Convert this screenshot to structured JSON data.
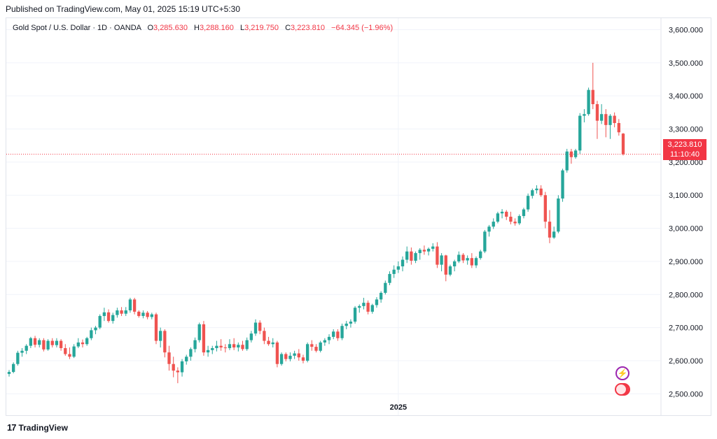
{
  "header": {
    "published": "Published on TradingView.com, May 01, 2025 15:19 UTC+5:30"
  },
  "legend": {
    "symbol": "Gold Spot / U.S. Dollar · 1D · OANDA",
    "o_label": "O",
    "o_value": "3,285.630",
    "h_label": "H",
    "h_value": "3,288.160",
    "l_label": "L",
    "l_value": "3,219.750",
    "c_label": "C",
    "c_value": "3,223.810",
    "change": "−64.345 (−1.96%)"
  },
  "price_tag": {
    "price": "3,223.810",
    "countdown": "11:10:40"
  },
  "events": {
    "event1_icon": "lightning-icon",
    "event2_icon": "us-flag-icon"
  },
  "footer": {
    "logo_text": "TradingView",
    "logo_icon": "tradingview-logo-icon"
  },
  "colors": {
    "up": "#26a69a",
    "down": "#ef5350",
    "last_price": "#f23645",
    "grid": "#f0f3fa"
  },
  "chart_data": {
    "type": "candlestick",
    "title": "Gold Spot / U.S. Dollar · 1D · OANDA",
    "ylim": [
      2450,
      3620
    ],
    "y_ticks": [
      2500,
      2600,
      2700,
      2800,
      2900,
      3000,
      3100,
      3200,
      3300,
      3400,
      3500,
      3600
    ],
    "y_tick_labels": [
      "2,500.000",
      "2,600.000",
      "2,700.000",
      "2,800.000",
      "2,900.000",
      "3,000.000",
      "3,100.000",
      "3,200.000",
      "3,300.000",
      "3,400.000",
      "3,500.000",
      "3,600.000"
    ],
    "x_labels": [
      {
        "index": 90,
        "label": "2025"
      }
    ],
    "last_price": 3223.81,
    "candles": [
      [
        2560,
        2572,
        2552,
        2566
      ],
      [
        2566,
        2595,
        2562,
        2590
      ],
      [
        2590,
        2630,
        2585,
        2624
      ],
      [
        2624,
        2638,
        2612,
        2630
      ],
      [
        2630,
        2650,
        2620,
        2645
      ],
      [
        2645,
        2672,
        2638,
        2668
      ],
      [
        2668,
        2675,
        2640,
        2648
      ],
      [
        2648,
        2668,
        2640,
        2662
      ],
      [
        2662,
        2668,
        2628,
        2634
      ],
      [
        2634,
        2665,
        2630,
        2660
      ],
      [
        2660,
        2668,
        2640,
        2647
      ],
      [
        2647,
        2668,
        2640,
        2660
      ],
      [
        2660,
        2665,
        2630,
        2638
      ],
      [
        2638,
        2650,
        2615,
        2620
      ],
      [
        2620,
        2640,
        2605,
        2612
      ],
      [
        2612,
        2650,
        2608,
        2643
      ],
      [
        2643,
        2668,
        2638,
        2655
      ],
      [
        2655,
        2664,
        2640,
        2650
      ],
      [
        2650,
        2672,
        2645,
        2668
      ],
      [
        2668,
        2700,
        2662,
        2692
      ],
      [
        2692,
        2705,
        2680,
        2700
      ],
      [
        2700,
        2740,
        2695,
        2735
      ],
      [
        2735,
        2760,
        2720,
        2746
      ],
      [
        2746,
        2755,
        2715,
        2720
      ],
      [
        2720,
        2745,
        2712,
        2738
      ],
      [
        2738,
        2760,
        2730,
        2752
      ],
      [
        2752,
        2762,
        2735,
        2742
      ],
      [
        2742,
        2762,
        2735,
        2752
      ],
      [
        2752,
        2790,
        2745,
        2785
      ],
      [
        2785,
        2790,
        2740,
        2748
      ],
      [
        2748,
        2752,
        2730,
        2735
      ],
      [
        2735,
        2752,
        2728,
        2745
      ],
      [
        2745,
        2750,
        2725,
        2732
      ],
      [
        2732,
        2745,
        2725,
        2740
      ],
      [
        2740,
        2745,
        2650,
        2660
      ],
      [
        2660,
        2700,
        2640,
        2690
      ],
      [
        2690,
        2695,
        2610,
        2625
      ],
      [
        2625,
        2645,
        2570,
        2590
      ],
      [
        2590,
        2612,
        2550,
        2570
      ],
      [
        2570,
        2580,
        2532,
        2565
      ],
      [
        2565,
        2605,
        2552,
        2598
      ],
      [
        2598,
        2618,
        2588,
        2612
      ],
      [
        2612,
        2640,
        2600,
        2635
      ],
      [
        2635,
        2670,
        2625,
        2662
      ],
      [
        2662,
        2715,
        2655,
        2710
      ],
      [
        2710,
        2720,
        2615,
        2625
      ],
      [
        2625,
        2645,
        2612,
        2632
      ],
      [
        2632,
        2645,
        2620,
        2638
      ],
      [
        2638,
        2660,
        2628,
        2645
      ],
      [
        2645,
        2665,
        2630,
        2640
      ],
      [
        2640,
        2650,
        2625,
        2638
      ],
      [
        2638,
        2665,
        2632,
        2650
      ],
      [
        2650,
        2668,
        2632,
        2640
      ],
      [
        2640,
        2655,
        2628,
        2648
      ],
      [
        2648,
        2660,
        2630,
        2635
      ],
      [
        2635,
        2670,
        2630,
        2662
      ],
      [
        2662,
        2690,
        2655,
        2682
      ],
      [
        2682,
        2725,
        2675,
        2715
      ],
      [
        2715,
        2722,
        2680,
        2690
      ],
      [
        2690,
        2700,
        2650,
        2660
      ],
      [
        2660,
        2672,
        2645,
        2650
      ],
      [
        2650,
        2668,
        2640,
        2655
      ],
      [
        2655,
        2660,
        2580,
        2590
      ],
      [
        2590,
        2625,
        2585,
        2620
      ],
      [
        2620,
        2625,
        2598,
        2605
      ],
      [
        2605,
        2625,
        2598,
        2615
      ],
      [
        2615,
        2630,
        2605,
        2622
      ],
      [
        2622,
        2635,
        2600,
        2610
      ],
      [
        2610,
        2618,
        2592,
        2600
      ],
      [
        2600,
        2655,
        2595,
        2650
      ],
      [
        2650,
        2662,
        2630,
        2642
      ],
      [
        2642,
        2650,
        2625,
        2630
      ],
      [
        2630,
        2660,
        2625,
        2655
      ],
      [
        2655,
        2668,
        2645,
        2662
      ],
      [
        2662,
        2680,
        2650,
        2672
      ],
      [
        2672,
        2695,
        2665,
        2688
      ],
      [
        2688,
        2695,
        2660,
        2668
      ],
      [
        2668,
        2712,
        2662,
        2705
      ],
      [
        2705,
        2720,
        2695,
        2712
      ],
      [
        2712,
        2725,
        2700,
        2718
      ],
      [
        2718,
        2765,
        2712,
        2760
      ],
      [
        2760,
        2770,
        2745,
        2765
      ],
      [
        2765,
        2790,
        2755,
        2775
      ],
      [
        2775,
        2782,
        2740,
        2748
      ],
      [
        2748,
        2772,
        2742,
        2768
      ],
      [
        2768,
        2792,
        2760,
        2785
      ],
      [
        2785,
        2810,
        2775,
        2805
      ],
      [
        2805,
        2842,
        2800,
        2835
      ],
      [
        2835,
        2870,
        2828,
        2862
      ],
      [
        2862,
        2888,
        2850,
        2875
      ],
      [
        2875,
        2900,
        2865,
        2885
      ],
      [
        2885,
        2915,
        2870,
        2905
      ],
      [
        2905,
        2945,
        2895,
        2930
      ],
      [
        2930,
        2942,
        2890,
        2902
      ],
      [
        2902,
        2930,
        2895,
        2925
      ],
      [
        2925,
        2940,
        2905,
        2935
      ],
      [
        2935,
        2948,
        2920,
        2930
      ],
      [
        2930,
        2942,
        2918,
        2938
      ],
      [
        2938,
        2955,
        2930,
        2945
      ],
      [
        2945,
        2958,
        2880,
        2890
      ],
      [
        2890,
        2925,
        2870,
        2918
      ],
      [
        2918,
        2920,
        2840,
        2860
      ],
      [
        2860,
        2890,
        2855,
        2885
      ],
      [
        2885,
        2905,
        2870,
        2900
      ],
      [
        2900,
        2930,
        2895,
        2920
      ],
      [
        2920,
        2925,
        2895,
        2903
      ],
      [
        2903,
        2918,
        2890,
        2910
      ],
      [
        2910,
        2925,
        2880,
        2888
      ],
      [
        2888,
        2915,
        2880,
        2910
      ],
      [
        2910,
        2935,
        2905,
        2930
      ],
      [
        2930,
        2995,
        2925,
        2990
      ],
      [
        2990,
        3010,
        2975,
        3005
      ],
      [
        3005,
        3030,
        2998,
        3020
      ],
      [
        3020,
        3050,
        3015,
        3045
      ],
      [
        3045,
        3058,
        3030,
        3050
      ],
      [
        3050,
        3055,
        3025,
        3035
      ],
      [
        3035,
        3050,
        3012,
        3020
      ],
      [
        3020,
        3030,
        3008,
        3015
      ],
      [
        3015,
        3042,
        3010,
        3037
      ],
      [
        3037,
        3062,
        3030,
        3057
      ],
      [
        3057,
        3105,
        3050,
        3098
      ],
      [
        3098,
        3120,
        3090,
        3115
      ],
      [
        3115,
        3130,
        3105,
        3120
      ],
      [
        3120,
        3130,
        3095,
        3100
      ],
      [
        3100,
        3110,
        3000,
        3020
      ],
      [
        3020,
        3055,
        2955,
        2972
      ],
      [
        2972,
        3005,
        2968,
        2990
      ],
      [
        2990,
        3100,
        2985,
        3090
      ],
      [
        3090,
        3180,
        3080,
        3175
      ],
      [
        3175,
        3240,
        3168,
        3232
      ],
      [
        3232,
        3240,
        3195,
        3215
      ],
      [
        3215,
        3240,
        3210,
        3235
      ],
      [
        3235,
        3348,
        3225,
        3340
      ],
      [
        3340,
        3360,
        3320,
        3345
      ],
      [
        3345,
        3425,
        3340,
        3418
      ],
      [
        3418,
        3500,
        3360,
        3375
      ],
      [
        3375,
        3385,
        3270,
        3325
      ],
      [
        3325,
        3375,
        3315,
        3345
      ],
      [
        3345,
        3360,
        3275,
        3312
      ],
      [
        3312,
        3345,
        3270,
        3340
      ],
      [
        3340,
        3350,
        3305,
        3318
      ],
      [
        3318,
        3330,
        3280,
        3290
      ],
      [
        3286,
        3288,
        3220,
        3224
      ]
    ]
  }
}
